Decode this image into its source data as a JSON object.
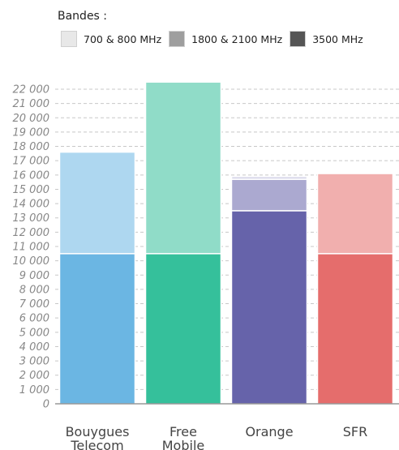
{
  "chart_data": {
    "type": "bar",
    "stacked": true,
    "legend_title": "Bandes :",
    "categories": [
      "Bouygues Telecom",
      "Free Mobile",
      "Orange",
      "SFR"
    ],
    "series": [
      {
        "name": "700 & 800 MHz",
        "values": [
          10500,
          10500,
          13500,
          10500
        ]
      },
      {
        "name": "1800 & 2100 MHz",
        "values": [
          7100,
          12000,
          2200,
          5600
        ]
      },
      {
        "name": "3500 MHz",
        "values": [
          0,
          0,
          200,
          0
        ]
      }
    ],
    "legend_colors": [
      "#e8e8e8",
      "#9e9e9e",
      "#555555"
    ],
    "category_colors": [
      "#6bb6e3",
      "#35c09b",
      "#6663aa",
      "#e56d6c"
    ],
    "yticks": [
      "0",
      "1 000",
      "2 000",
      "3 000",
      "4 000",
      "5 000",
      "6 000",
      "7 000",
      "8 000",
      "9 000",
      "10 000",
      "11 000",
      "12 000",
      "13 000",
      "14 000",
      "15 000",
      "16 000",
      "17 000",
      "18 000",
      "19 000",
      "20 000",
      "21 000",
      "22 000"
    ],
    "ylim": [
      0,
      22000
    ],
    "grid": true,
    "legend_position": "top-left"
  }
}
